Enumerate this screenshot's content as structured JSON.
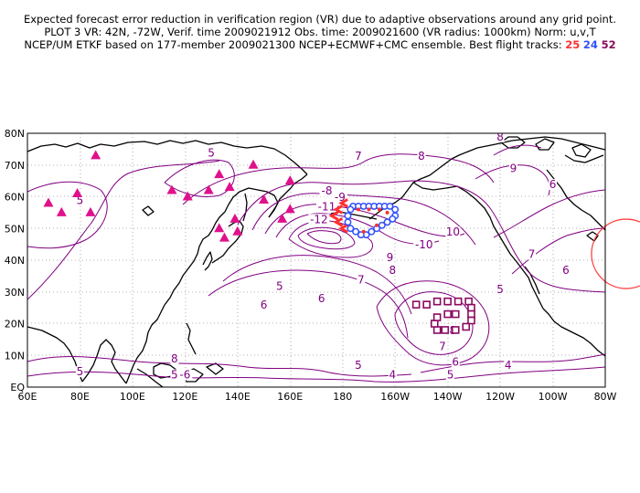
{
  "title": {
    "line1": "Expected forecast error reduction in verification region (VR) due to adaptive observations around any grid point.",
    "line2": "PLOT 3 VR: 42N, -72W, Verif. time 2009021912 Obs. time: 2009021600 (VR radius: 1000km) Norm: u,v,T",
    "line3_prefix": "NCEP/UM ETKF based on 177-member 2009021300 NCEP+ECMWF+CMC ensemble. Best flight tracks:",
    "tracks": [
      {
        "label": "25",
        "color": "#ff3030"
      },
      {
        "label": "24",
        "color": "#3050ff"
      },
      {
        "label": "52",
        "color": "#8a0a60"
      }
    ]
  },
  "map": {
    "lon_ticks": [
      "60E",
      "80E",
      "100E",
      "120E",
      "140E",
      "160E",
      "180",
      "160W",
      "140W",
      "120W",
      "100W",
      "80W"
    ],
    "lat_ticks": [
      "EQ",
      "10N",
      "20N",
      "30N",
      "40N",
      "50N",
      "60N",
      "70N",
      "80N"
    ],
    "contour_labels": [
      {
        "text": "5",
        "lon": 80,
        "lat": 58
      },
      {
        "text": "5",
        "lon": 130,
        "lat": 73
      },
      {
        "text": "7",
        "lon": 186,
        "lat": 72
      },
      {
        "text": "8",
        "lon": 210,
        "lat": 72
      },
      {
        "text": "8",
        "lon": 240,
        "lat": 78
      },
      {
        "text": "9",
        "lon": 245,
        "lat": 68
      },
      {
        "text": "6",
        "lon": 260,
        "lat": 63
      },
      {
        "text": "7",
        "lon": 252,
        "lat": 41
      },
      {
        "text": "6",
        "lon": 265,
        "lat": 36
      },
      {
        "text": "5",
        "lon": 240,
        "lat": 30
      },
      {
        "text": "-8",
        "lon": 174,
        "lat": 61
      },
      {
        "text": "-9",
        "lon": 179,
        "lat": 59
      },
      {
        "text": "-11",
        "lon": 174,
        "lat": 56
      },
      {
        "text": "-12",
        "lon": 171,
        "lat": 52
      },
      {
        "text": "10",
        "lon": 222,
        "lat": 48
      },
      {
        "text": "-10",
        "lon": 211,
        "lat": 44
      },
      {
        "text": "9",
        "lon": 198,
        "lat": 40
      },
      {
        "text": "8",
        "lon": 199,
        "lat": 36
      },
      {
        "text": "7",
        "lon": 187,
        "lat": 33
      },
      {
        "text": "5",
        "lon": 156,
        "lat": 31
      },
      {
        "text": "6",
        "lon": 172,
        "lat": 27
      },
      {
        "text": "6",
        "lon": 150,
        "lat": 25
      },
      {
        "text": "8",
        "lon": 222,
        "lat": 17
      },
      {
        "text": "7",
        "lon": 218,
        "lat": 12
      },
      {
        "text": "6",
        "lon": 223,
        "lat": 7
      },
      {
        "text": "5",
        "lon": 186,
        "lat": 6
      },
      {
        "text": "4",
        "lon": 199,
        "lat": 3
      },
      {
        "text": "5",
        "lon": 221,
        "lat": 3
      },
      {
        "text": "4",
        "lon": 243,
        "lat": 6
      },
      {
        "text": "5",
        "lon": 80,
        "lat": 4
      },
      {
        "text": "8",
        "lon": 116,
        "lat": 8
      },
      {
        "text": "5",
        "lon": 116,
        "lat": 3
      },
      {
        "text": "-6",
        "lon": 120,
        "lat": 3
      }
    ],
    "triangles": [
      {
        "lon": 86,
        "lat": 73
      },
      {
        "lon": 68,
        "lat": 58
      },
      {
        "lon": 73,
        "lat": 55
      },
      {
        "lon": 79,
        "lat": 61
      },
      {
        "lon": 84,
        "lat": 55
      },
      {
        "lon": 115,
        "lat": 62
      },
      {
        "lon": 121,
        "lat": 60
      },
      {
        "lon": 129,
        "lat": 62
      },
      {
        "lon": 133,
        "lat": 67
      },
      {
        "lon": 137,
        "lat": 63
      },
      {
        "lon": 146,
        "lat": 70
      },
      {
        "lon": 150,
        "lat": 59
      },
      {
        "lon": 160,
        "lat": 65
      },
      {
        "lon": 160,
        "lat": 56
      },
      {
        "lon": 157,
        "lat": 53
      },
      {
        "lon": 133,
        "lat": 50
      },
      {
        "lon": 135,
        "lat": 47
      },
      {
        "lon": 139,
        "lat": 53
      },
      {
        "lon": 140,
        "lat": 49
      }
    ],
    "track_red": [
      {
        "lon": 180.5,
        "lat": 58
      },
      {
        "lon": 178.5,
        "lat": 56
      },
      {
        "lon": 176.8,
        "lat": 54
      },
      {
        "lon": 178.5,
        "lat": 52
      },
      {
        "lon": 180.5,
        "lat": 50
      }
    ],
    "track_blue": [
      {
        "lon": 184,
        "lat": 57
      },
      {
        "lon": 186,
        "lat": 57
      },
      {
        "lon": 188,
        "lat": 57
      },
      {
        "lon": 190,
        "lat": 57
      },
      {
        "lon": 192,
        "lat": 57
      },
      {
        "lon": 194,
        "lat": 57
      },
      {
        "lon": 196,
        "lat": 57
      },
      {
        "lon": 198,
        "lat": 57
      },
      {
        "lon": 200,
        "lat": 56
      },
      {
        "lon": 200,
        "lat": 54
      },
      {
        "lon": 199,
        "lat": 53
      },
      {
        "lon": 197,
        "lat": 52
      },
      {
        "lon": 195,
        "lat": 51
      },
      {
        "lon": 193,
        "lat": 50
      },
      {
        "lon": 191,
        "lat": 49
      },
      {
        "lon": 189,
        "lat": 48
      },
      {
        "lon": 187,
        "lat": 48
      },
      {
        "lon": 185,
        "lat": 49
      },
      {
        "lon": 183,
        "lat": 50
      },
      {
        "lon": 182,
        "lat": 52
      },
      {
        "lon": 182,
        "lat": 54
      },
      {
        "lon": 183,
        "lat": 56
      }
    ],
    "track_blue_dots": [
      {
        "lon": 186,
        "lat": 56
      },
      {
        "lon": 190,
        "lat": 56
      },
      {
        "lon": 194,
        "lat": 56
      },
      {
        "lon": 197,
        "lat": 55
      },
      {
        "lon": 193,
        "lat": 51
      },
      {
        "lon": 188,
        "lat": 49
      }
    ],
    "track_purple": [
      {
        "lon": 208,
        "lat": 26
      },
      {
        "lon": 212,
        "lat": 26
      },
      {
        "lon": 216,
        "lat": 27
      },
      {
        "lon": 220,
        "lat": 27
      },
      {
        "lon": 224,
        "lat": 27
      },
      {
        "lon": 228,
        "lat": 27
      },
      {
        "lon": 229,
        "lat": 25
      },
      {
        "lon": 229,
        "lat": 23
      },
      {
        "lon": 229,
        "lat": 21
      },
      {
        "lon": 227,
        "lat": 19
      },
      {
        "lon": 223,
        "lat": 18
      },
      {
        "lon": 219,
        "lat": 18
      },
      {
        "lon": 216,
        "lat": 18
      },
      {
        "lon": 215,
        "lat": 20
      },
      {
        "lon": 216,
        "lat": 22
      },
      {
        "lon": 220,
        "lat": 23
      },
      {
        "lon": 223,
        "lat": 23
      }
    ],
    "verification_region": {
      "center_lon": 288,
      "center_lat": 42
    }
  }
}
